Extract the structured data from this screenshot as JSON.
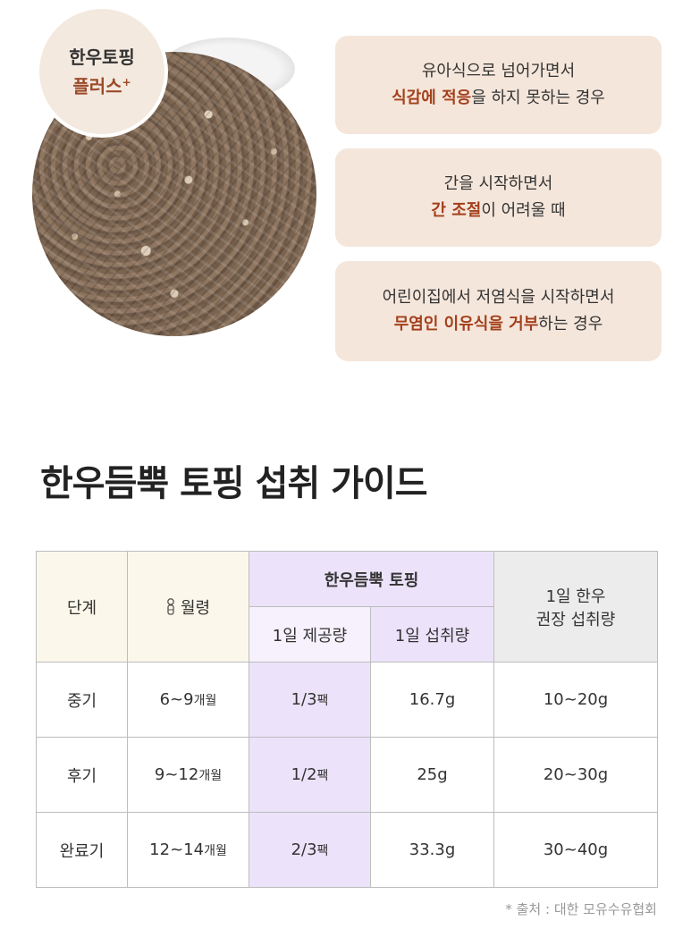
{
  "badge": {
    "title": "한우토핑",
    "subtitle": "플러스",
    "plus": "+"
  },
  "cards": [
    {
      "line1": "유아식으로 넘어가면서",
      "line2_highlight": "식감에 적응",
      "line2_rest": "을 하지 못하는 경우"
    },
    {
      "line1": "간을 시작하면서",
      "line2_highlight": "간 조절",
      "line2_rest": "이 어려울 때"
    },
    {
      "line1": "어린이집에서 저염식을 시작하면서",
      "line2_highlight": "무염인 이유식을 거부",
      "line2_rest": "하는 경우"
    }
  ],
  "guide_title": "한우듬뿍 토핑 섭취 가이드",
  "table": {
    "headers": {
      "stage": "단계",
      "age": "월령",
      "product": "한우듬뿍 토핑",
      "daily_serving": "1일 제공량",
      "daily_intake": "1일 섭취량",
      "recommended_line1": "1일 한우",
      "recommended_line2": "권장 섭취량"
    },
    "rows": [
      {
        "stage": "중기",
        "age": "6~9",
        "age_unit": "개월",
        "serving": "1/3",
        "serving_unit": "팩",
        "intake": "16.7g",
        "recommended": "10~20g"
      },
      {
        "stage": "후기",
        "age": "9~12",
        "age_unit": "개월",
        "serving": "1/2",
        "serving_unit": "팩",
        "intake": "25g",
        "recommended": "20~30g"
      },
      {
        "stage": "완료기",
        "age": "12~14",
        "age_unit": "개월",
        "serving": "2/3",
        "serving_unit": "팩",
        "intake": "33.3g",
        "recommended": "30~40g"
      }
    ]
  },
  "source": "* 출처 : 대한 모유수유협회",
  "colors": {
    "highlight": "#a3401c",
    "card_bg": "#f5e6db",
    "purple_bg": "#ece3fa",
    "header_bg": "#fbf7ea"
  }
}
